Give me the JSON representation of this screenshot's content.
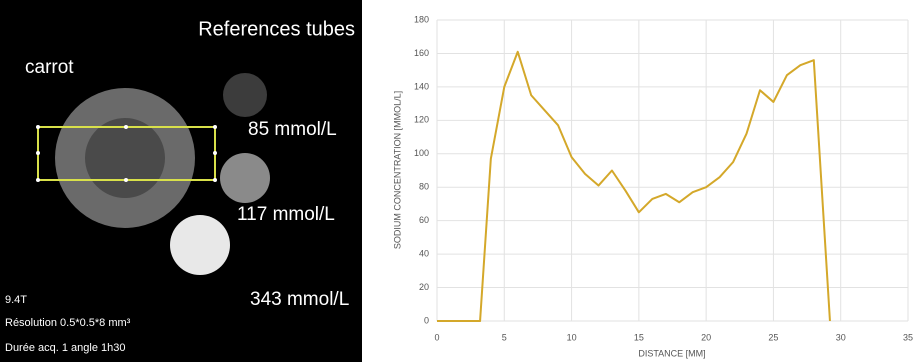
{
  "image": {
    "title": "References tubes",
    "sample": "carrot",
    "tube_labels": [
      "85 mmol/L",
      "117 mmol/L",
      "343 mmol/L"
    ],
    "info": [
      "9.4T",
      "Résolution 0.5*0.5*8 mm³",
      "Durée acq. 1 angle 1h30"
    ]
  },
  "chart_data": {
    "type": "line",
    "x_label": "DISTANCE [MM]",
    "y_label": "SODIUM CONCENTRATION [MMOL/L]",
    "x": [
      0,
      3.2,
      4,
      5,
      6,
      7,
      8,
      9,
      10,
      11,
      12,
      13,
      14,
      15,
      16,
      17,
      18,
      19,
      20,
      21,
      22,
      23,
      24,
      25,
      26,
      27,
      28,
      29.2
    ],
    "values": [
      0,
      0,
      97,
      140,
      161,
      135,
      126,
      117,
      98,
      88,
      81,
      90,
      78,
      65,
      73,
      76,
      71,
      77,
      80,
      86,
      95,
      112,
      138,
      131,
      147,
      153,
      156,
      0
    ],
    "color": "#d4a82a",
    "xlim": [
      0,
      35
    ],
    "xticks": [
      0,
      5,
      10,
      15,
      20,
      25,
      30,
      35
    ],
    "ylim": [
      0,
      180
    ],
    "yticks": [
      0,
      20,
      40,
      60,
      80,
      100,
      120,
      140,
      160,
      180
    ],
    "grid": true
  }
}
